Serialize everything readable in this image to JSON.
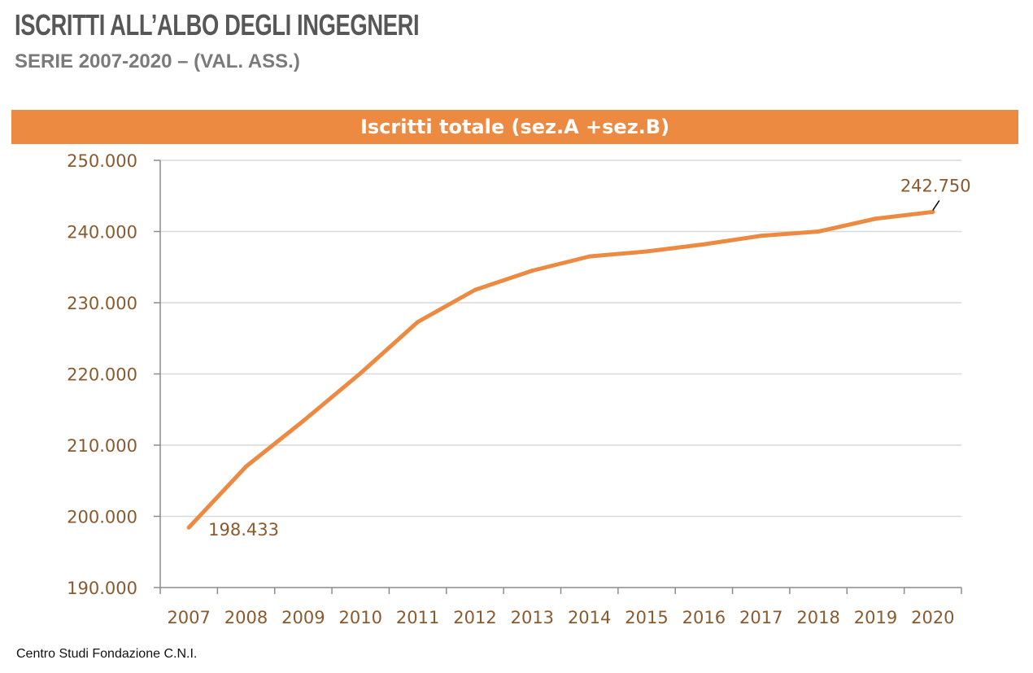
{
  "header": {
    "title": "ISCRITTI ALL’ALBO DEGLI INGEGNERI",
    "subtitle": "SERIE 2007-2020 – (VAL. ASS.)"
  },
  "colors": {
    "accent": "#ec8a42",
    "axis_text": "#8a5a2f",
    "grid": "#d9d9d9"
  },
  "chart_data": {
    "type": "line",
    "title": "Iscritti totale (sez.A +sez.B)",
    "xlabel": "",
    "ylabel": "",
    "grid": true,
    "legend": "none",
    "ylim": [
      190000,
      250000
    ],
    "yticks": [
      "190.000",
      "200.000",
      "210.000",
      "220.000",
      "230.000",
      "240.000",
      "250.000"
    ],
    "ytick_values": [
      190000,
      200000,
      210000,
      220000,
      230000,
      240000,
      250000
    ],
    "categories": [
      "2007",
      "2008",
      "2009",
      "2010",
      "2011",
      "2012",
      "2013",
      "2014",
      "2015",
      "2016",
      "2017",
      "2018",
      "2019",
      "2020"
    ],
    "series": [
      {
        "values": [
          198433,
          207000,
          213400,
          220100,
          227300,
          231800,
          234500,
          236500,
          237200,
          238200,
          239400,
          240000,
          241800,
          242750
        ]
      }
    ],
    "annotations": [
      {
        "index": 0,
        "text": "198.433"
      },
      {
        "index": 13,
        "text": "242.750"
      }
    ]
  },
  "footer": {
    "source": "Centro Studi Fondazione C.N.I."
  }
}
